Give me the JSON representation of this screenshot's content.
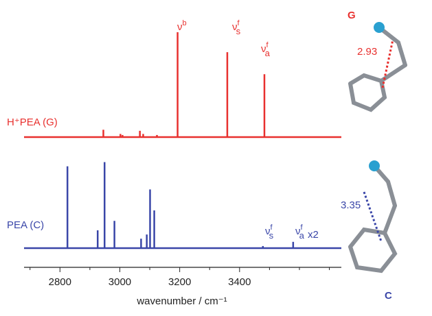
{
  "chart_data": {
    "type": "stick",
    "xlabel": "wavenumber / cm⁻¹",
    "xlim": [
      2680,
      3740
    ],
    "xticks": [
      2800,
      3000,
      3200,
      3400
    ],
    "minor_xticks": [
      2700,
      2900,
      3100,
      3300,
      3500,
      3600,
      3700
    ],
    "ylim": [
      0,
      100
    ],
    "series": [
      {
        "name": "H⁺PEA (G)",
        "color": "#e8302e",
        "x": [
          2945,
          3002,
          3009,
          3067,
          3078,
          3124,
          3193,
          3359,
          3483
        ],
        "values": [
          7,
          3,
          2,
          6,
          3,
          2,
          100,
          81,
          60
        ]
      },
      {
        "name": "PEA (C)",
        "color": "#3a46a8",
        "x": [
          2825,
          2926,
          2949,
          2982,
          3071,
          3090,
          3101,
          3115,
          3478,
          3579
        ],
        "values": [
          78,
          17,
          82,
          26,
          9,
          13,
          56,
          36,
          2,
          6
        ]
      }
    ],
    "annotations": [
      {
        "base": "ν",
        "sup": "b"
      },
      {
        "base": "ν",
        "sup": "f",
        "sub": "s"
      },
      {
        "base": "ν",
        "sup": "f",
        "sub": "a"
      },
      {
        "base": "ν",
        "sup": "f",
        "sub": "s"
      },
      {
        "base": "ν",
        "sup": "f",
        "sub": "a"
      },
      {
        "text": "x2"
      }
    ]
  },
  "structures": [
    {
      "label": "G",
      "distance": "2.93"
    },
    {
      "label": "C",
      "distance": "3.35"
    }
  ]
}
